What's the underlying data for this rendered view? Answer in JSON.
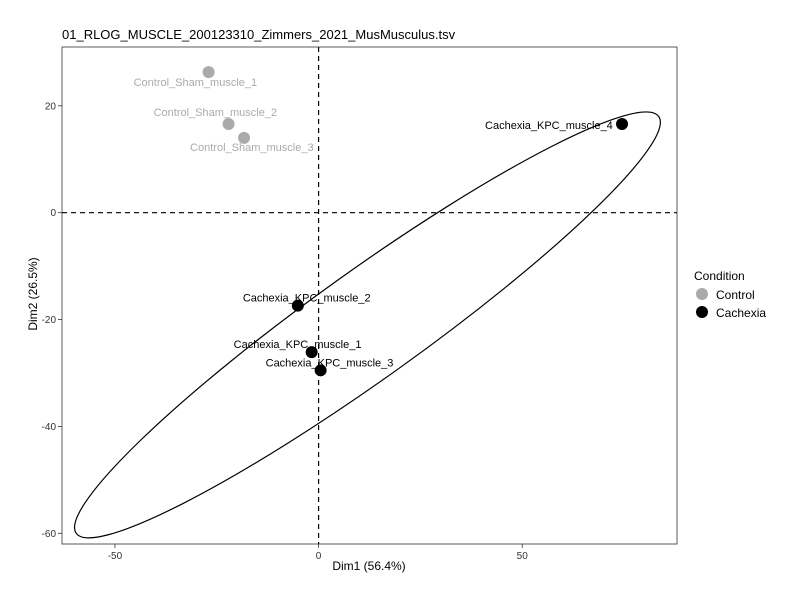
{
  "chart_data": {
    "type": "scatter",
    "title": "01_RLOG_MUSCLE_200123310_Zimmers_2021_MusMusculus.tsv",
    "xlabel": "Dim1 (56.4%)",
    "ylabel": "Dim2 (26.5%)",
    "xlim": [
      -63,
      88
    ],
    "ylim": [
      -62,
      31
    ],
    "xticks": [
      -50,
      0,
      50
    ],
    "yticks": [
      -60,
      -40,
      -20,
      0,
      20
    ],
    "xtick_labels": [
      "-50",
      "0",
      "50"
    ],
    "ytick_labels": [
      "-60",
      "-40",
      "-20",
      "0",
      "20"
    ],
    "reference_lines": {
      "x": 0,
      "y": 0,
      "style": "dashed"
    },
    "grid": false,
    "legend": {
      "title": "Condition",
      "position": "right",
      "entries": [
        {
          "name": "Control",
          "color": "#aaaaaa"
        },
        {
          "name": "Cachexia",
          "color": "#000000"
        }
      ]
    },
    "series": [
      {
        "name": "Control",
        "color": "#aaaaaa",
        "points": [
          {
            "label": "Control_Sham_muscle_1",
            "x": -27,
            "y": 26.3
          },
          {
            "label": "Control_Sham_muscle_2",
            "x": -22.1,
            "y": 16.6
          },
          {
            "label": "Control_Sham_muscle_3",
            "x": -18.3,
            "y": 14
          }
        ]
      },
      {
        "name": "Cachexia",
        "color": "#000000",
        "points": [
          {
            "label": "Cachexia_KPC_muscle_4",
            "x": 74.5,
            "y": 16.6
          },
          {
            "label": "Cachexia_KPC_muscle_2",
            "x": -5.1,
            "y": -17.4
          },
          {
            "label": "Cachexia_KPC_muscle_1",
            "x": -1.7,
            "y": -26.1
          },
          {
            "label": "Cachexia_KPC_muscle_3",
            "x": 0.5,
            "y": -29.5
          }
        ]
      }
    ],
    "ellipse": {
      "series": "Cachexia",
      "color": "#000000",
      "center": [
        12,
        -21
      ],
      "extreme_points": [
        {
          "x": 84,
          "y": 22
        },
        {
          "x": -59,
          "y": -56
        }
      ]
    }
  }
}
